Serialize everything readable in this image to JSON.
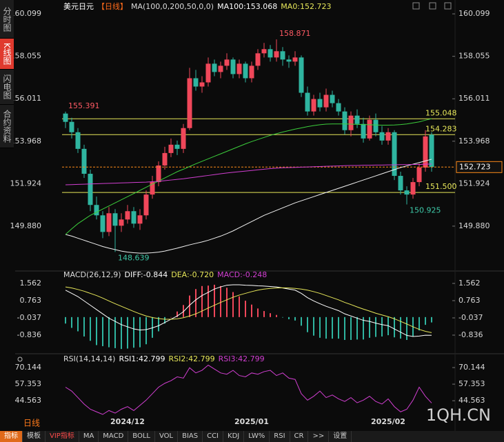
{
  "sidebar": [
    "分时图",
    "K线图",
    "闪电图",
    "合约资料"
  ],
  "chart_data": [
    {
      "type": "candlestick",
      "header": [
        {
          "text": "美元日元",
          "color": "#ffffff"
        },
        {
          "text": "【日线】",
          "color": "#ff6a1a"
        },
        {
          "text": "MA(100,0,200,50,0,0)",
          "color": "#dddddd"
        },
        {
          "text": "MA100:153.068",
          "color": "#ffffff"
        },
        {
          "text": "MA0:152.723",
          "color": "#e8e85a"
        }
      ],
      "categories": [
        null,
        null,
        null,
        null,
        null,
        null,
        null,
        null,
        null,
        null,
        "2024/12",
        null,
        null,
        null,
        null,
        null,
        null,
        null,
        null,
        null,
        null,
        null,
        null,
        null,
        null,
        null,
        null,
        null,
        null,
        null,
        "2025/01",
        null,
        null,
        null,
        null,
        null,
        null,
        null,
        null,
        null,
        null,
        null,
        null,
        null,
        null,
        null,
        null,
        null,
        null,
        null,
        null,
        null,
        "2025/02",
        null,
        null,
        null,
        null,
        null,
        null,
        null
      ],
      "candles": [
        [
          155.3,
          155.391,
          154.6,
          154.9
        ],
        [
          154.9,
          155.1,
          154.1,
          154.4
        ],
        [
          154.4,
          154.6,
          153.4,
          153.6
        ],
        [
          153.6,
          153.8,
          152.2,
          152.4
        ],
        [
          152.4,
          152.6,
          150.6,
          150.9
        ],
        [
          150.9,
          151.3,
          150.2,
          150.4
        ],
        [
          150.4,
          150.6,
          149.3,
          149.6
        ],
        [
          149.6,
          150.8,
          149.4,
          150.5
        ],
        [
          150.5,
          150.7,
          148.639,
          149.9
        ],
        [
          149.9,
          150.5,
          149.6,
          150.2
        ],
        [
          150.2,
          150.9,
          150.0,
          150.6
        ],
        [
          150.6,
          150.8,
          149.8,
          150.0
        ],
        [
          150.0,
          150.7,
          149.7,
          150.4
        ],
        [
          150.4,
          151.6,
          150.2,
          151.4
        ],
        [
          151.4,
          152.3,
          151.2,
          152.0
        ],
        [
          152.0,
          153.0,
          151.8,
          152.8
        ],
        [
          152.8,
          153.7,
          152.6,
          153.4
        ],
        [
          153.4,
          154.1,
          153.2,
          153.8
        ],
        [
          153.8,
          154.0,
          153.3,
          153.6
        ],
        [
          153.6,
          154.8,
          153.4,
          154.6
        ],
        [
          154.6,
          157.5,
          154.5,
          157.0
        ],
        [
          157.0,
          157.4,
          156.4,
          156.6
        ],
        [
          156.6,
          157.1,
          156.3,
          156.8
        ],
        [
          156.8,
          158.0,
          156.6,
          157.7
        ],
        [
          157.7,
          157.9,
          157.1,
          157.3
        ],
        [
          157.3,
          157.8,
          157.0,
          157.6
        ],
        [
          157.6,
          158.2,
          157.4,
          157.9
        ],
        [
          157.9,
          158.0,
          157.0,
          157.2
        ],
        [
          157.2,
          157.9,
          157.0,
          157.7
        ],
        [
          157.7,
          157.8,
          156.8,
          157.0
        ],
        [
          157.0,
          157.8,
          156.8,
          157.6
        ],
        [
          157.6,
          158.4,
          157.4,
          158.2
        ],
        [
          158.2,
          158.7,
          158.0,
          158.4
        ],
        [
          158.4,
          158.6,
          157.8,
          158.0
        ],
        [
          158.0,
          158.871,
          157.8,
          158.3
        ],
        [
          158.3,
          158.5,
          157.6,
          157.9
        ],
        [
          157.9,
          158.1,
          157.5,
          157.8
        ],
        [
          157.8,
          158.3,
          157.6,
          158.0
        ],
        [
          158.0,
          158.1,
          156.1,
          156.3
        ],
        [
          156.3,
          156.6,
          155.2,
          155.4
        ],
        [
          155.4,
          156.2,
          155.2,
          156.0
        ],
        [
          156.0,
          156.3,
          155.4,
          155.6
        ],
        [
          155.6,
          156.5,
          155.4,
          156.2
        ],
        [
          156.2,
          156.4,
          155.6,
          155.8
        ],
        [
          155.8,
          156.0,
          155.2,
          155.4
        ],
        [
          155.4,
          155.6,
          154.3,
          154.5
        ],
        [
          154.5,
          155.4,
          154.2,
          155.2
        ],
        [
          155.2,
          155.5,
          154.6,
          154.8
        ],
        [
          154.8,
          155.1,
          153.9,
          154.1
        ],
        [
          154.1,
          155.2,
          154.0,
          155.0
        ],
        [
          155.0,
          155.3,
          154.2,
          154.4
        ],
        [
          154.4,
          154.7,
          153.8,
          154.0
        ],
        [
          154.0,
          154.6,
          153.8,
          154.4
        ],
        [
          154.4,
          154.5,
          152.1,
          152.3
        ],
        [
          152.3,
          152.5,
          151.4,
          151.6
        ],
        [
          151.6,
          151.8,
          150.925,
          151.4
        ],
        [
          151.4,
          152.2,
          151.2,
          152.0
        ],
        [
          152.0,
          152.9,
          151.8,
          152.7
        ],
        [
          152.7,
          154.5,
          152.5,
          154.2
        ],
        [
          154.283,
          154.4,
          152.5,
          152.723
        ]
      ],
      "up_color": "#f0475a",
      "down_color": "#2fb5a0",
      "series": [
        {
          "color": "#f2f2f2",
          "values": [
            149.48,
            149.4,
            149.3,
            149.2,
            149.1,
            149.0,
            148.9,
            148.82,
            148.75,
            148.68,
            148.63,
            148.6,
            148.58,
            148.58,
            148.6,
            148.63,
            148.68,
            148.75,
            148.82,
            148.9,
            148.98,
            149.05,
            149.12,
            149.2,
            149.3,
            149.4,
            149.52,
            149.65,
            149.8,
            149.95,
            150.1,
            150.25,
            150.4,
            150.52,
            150.64,
            150.76,
            150.88,
            151.0,
            151.1,
            151.2,
            151.3,
            151.4,
            151.5,
            151.6,
            151.7,
            151.8,
            151.9,
            152.0,
            152.1,
            152.2,
            152.3,
            152.4,
            152.5,
            152.6,
            152.7,
            152.78,
            152.86,
            152.94,
            153.02,
            153.1
          ]
        },
        {
          "color": "#3ccf3c",
          "values": [
            149.48,
            149.75,
            150.0,
            150.2,
            150.4,
            150.55,
            150.7,
            150.85,
            151.0,
            151.15,
            151.3,
            151.45,
            151.6,
            151.75,
            151.9,
            152.05,
            152.2,
            152.35,
            152.5,
            152.62,
            152.75,
            152.88,
            153.0,
            153.12,
            153.24,
            153.36,
            153.48,
            153.6,
            153.72,
            153.84,
            153.95,
            154.05,
            154.15,
            154.25,
            154.33,
            154.41,
            154.48,
            154.55,
            154.61,
            154.67,
            154.72,
            154.76,
            154.79,
            154.8,
            154.8,
            154.8,
            154.79,
            154.78,
            154.77,
            154.76,
            154.75,
            154.74,
            154.74,
            154.75,
            154.77,
            154.8,
            154.85,
            154.9,
            154.98,
            155.05
          ]
        },
        {
          "color": "#d23fd2",
          "values": [
            151.87,
            151.88,
            151.89,
            151.9,
            151.91,
            151.92,
            151.93,
            151.94,
            151.95,
            151.96,
            151.97,
            151.98,
            151.99,
            152.0,
            152.02,
            152.04,
            152.07,
            152.1,
            152.13,
            152.16,
            152.2,
            152.24,
            152.28,
            152.32,
            152.36,
            152.4,
            152.44,
            152.47,
            152.5,
            152.53,
            152.56,
            152.59,
            152.62,
            152.65,
            152.67,
            152.69,
            152.7,
            152.71,
            152.72,
            152.73,
            152.74,
            152.75,
            152.76,
            152.77,
            152.78,
            152.79,
            152.8,
            152.8,
            152.81,
            152.81,
            152.82,
            152.82,
            152.83,
            152.83,
            152.84,
            152.84,
            152.85,
            152.85,
            152.86,
            152.87
          ]
        }
      ],
      "levels": [
        {
          "value": 155.048,
          "color": "#e8e85a"
        },
        {
          "value": 154.283,
          "color": "#e8e85a"
        },
        {
          "value": 151.5,
          "label": "151.500",
          "color": "#e8e85a"
        }
      ],
      "annotations": [
        {
          "value": 158.871,
          "color": "#ff5a64"
        },
        {
          "value": 155.391,
          "color": "#ff5a64"
        },
        {
          "value": 148.639,
          "color": "#3ec9a8"
        },
        {
          "value": 150.925,
          "color": "#3ec9a8"
        }
      ],
      "last_color": "#ff8c1a",
      "ylim": [
        147.82,
        160.6
      ],
      "yticks": [
        {
          "value": 149.88,
          "label": "149.880"
        },
        151.924,
        153.968,
        156.011,
        158.055,
        160.099
      ]
    },
    {
      "type": "macd",
      "header": [
        {
          "text": "MACD(26,12,9)",
          "color": "#dddddd"
        },
        {
          "text": "DIFF:-0.844",
          "color": "#ffffff"
        },
        {
          "text": "DEA:-0.720",
          "color": "#e8e85a"
        },
        {
          "text": "MACD:-0.248",
          "color": "#d23fd2"
        }
      ],
      "histogram": [
        -0.3,
        -0.5,
        -0.66,
        -0.9,
        -1.1,
        -1.3,
        -1.35,
        -1.4,
        -1.44,
        -1.48,
        -1.46,
        -1.42,
        -1.4,
        -1.26,
        -0.96,
        -0.66,
        -0.3,
        0.0,
        0.26,
        0.56,
        1.0,
        1.3,
        1.44,
        1.46,
        1.5,
        1.44,
        1.36,
        1.16,
        0.96,
        0.76,
        0.58,
        0.4,
        0.28,
        0.18,
        0.1,
        -0.02,
        -0.1,
        -0.16,
        -0.4,
        -0.7,
        -0.86,
        -0.96,
        -1.0,
        -1.0,
        -1.0,
        -1.06,
        -1.06,
        -1.04,
        -1.04,
        -0.96,
        -0.92,
        -0.9,
        -0.84,
        -0.94,
        -1.0,
        -1.06,
        -0.9,
        -0.62,
        -0.36,
        -0.248
      ],
      "up_color": "#f0475a",
      "down_color": "#2fb5a0",
      "series": [
        {
          "color": "#ffffff",
          "values": [
            1.25,
            1.1,
            0.95,
            0.75,
            0.55,
            0.35,
            0.15,
            -0.05,
            -0.2,
            -0.35,
            -0.45,
            -0.55,
            -0.6,
            -0.58,
            -0.5,
            -0.4,
            -0.25,
            -0.1,
            0.05,
            0.25,
            0.55,
            0.8,
            1.0,
            1.15,
            1.3,
            1.4,
            1.48,
            1.5,
            1.5,
            1.48,
            1.47,
            1.45,
            1.44,
            1.42,
            1.4,
            1.35,
            1.3,
            1.25,
            1.1,
            0.9,
            0.75,
            0.62,
            0.5,
            0.4,
            0.3,
            0.15,
            0.05,
            -0.05,
            -0.15,
            -0.2,
            -0.28,
            -0.35,
            -0.4,
            -0.55,
            -0.7,
            -0.85,
            -0.9,
            -0.88,
            -0.84,
            -0.844
          ]
        },
        {
          "color": "#e8e85a",
          "values": [
            1.4,
            1.35,
            1.28,
            1.2,
            1.1,
            1.0,
            0.88,
            0.75,
            0.62,
            0.5,
            0.38,
            0.26,
            0.15,
            0.05,
            -0.02,
            -0.07,
            -0.1,
            -0.1,
            -0.08,
            -0.03,
            0.05,
            0.15,
            0.28,
            0.42,
            0.55,
            0.68,
            0.8,
            0.92,
            1.02,
            1.1,
            1.18,
            1.25,
            1.3,
            1.33,
            1.35,
            1.36,
            1.35,
            1.33,
            1.3,
            1.25,
            1.18,
            1.1,
            1.0,
            0.9,
            0.8,
            0.68,
            0.58,
            0.47,
            0.37,
            0.28,
            0.18,
            0.1,
            0.02,
            -0.08,
            -0.2,
            -0.32,
            -0.45,
            -0.57,
            -0.66,
            -0.72
          ]
        }
      ],
      "ylim": [
        -1.604,
        1.914
      ],
      "yticks": [
        -0.836,
        -0.037,
        0.763,
        1.562
      ]
    },
    {
      "type": "line",
      "header": [
        {
          "text": "RSI(14,14,14)",
          "color": "#dddddd"
        },
        {
          "text": "RSI1:42.799",
          "color": "#ffffff"
        },
        {
          "text": "RSI2:42.799",
          "color": "#e8e85a"
        },
        {
          "text": "RSI3:42.799",
          "color": "#d23fd2"
        }
      ],
      "series": [
        {
          "color": "#d23fd2",
          "values": [
            55,
            52,
            47,
            42,
            38,
            36,
            34,
            37,
            35,
            38,
            40,
            37,
            41,
            45,
            50,
            55,
            58,
            60,
            63,
            62,
            70,
            66,
            68,
            72,
            69,
            66,
            65,
            68,
            64,
            63,
            66,
            65,
            67,
            68,
            64,
            66,
            62,
            61,
            50,
            45,
            48,
            52,
            47,
            49,
            46,
            44,
            47,
            43,
            45,
            48,
            44,
            42,
            46,
            40,
            36,
            38,
            45,
            55,
            48,
            42.799
          ]
        }
      ],
      "ylim": [
        34,
        78.14
      ],
      "yticks": [
        44.563,
        57.353,
        70.144
      ]
    }
  ],
  "toolbar": {
    "period": "日线",
    "buttons": [
      "指标",
      "模板",
      "VIP指标",
      "MA",
      "MACD",
      "BOLL",
      "VOL",
      "BIAS",
      "CCI",
      "KDJ",
      "LW%",
      "RSI",
      "CR",
      ">>",
      "设置"
    ]
  },
  "watermark": "1QH.CN"
}
